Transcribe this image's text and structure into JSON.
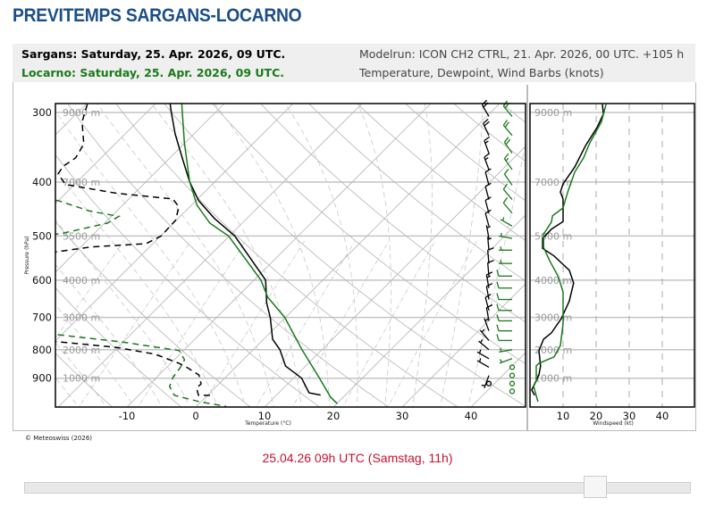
{
  "page_title": "PREVITEMPS SARGANS-LOCARNO",
  "header": {
    "station1": "Sargans: Saturday, 25. Apr. 2026, 09 UTC.",
    "station2": "Locarno: Saturday, 25. Apr. 2026, 09 UTC.",
    "modelrun": "Modelrun: ICON CH2 CTRL, 21. Apr. 2026, 00 UTC. +105 h",
    "variables": "Temperature, Dewpoint, Wind Barbs (knots)"
  },
  "colors": {
    "title": "#1d4f86",
    "sargans": "#000000",
    "locarno": "#1a7a1a",
    "time_label": "#c8102e",
    "grid": "#b0b0b0"
  },
  "copyright": "© Meteoswiss (2026)",
  "time_label": "25.04.26 09h UTC (Samstag, 11h)",
  "slider": {
    "position_fraction": 0.87
  },
  "chart_data": [
    {
      "type": "skew-t",
      "xlabel": "Temperature (°C)",
      "ylabel": "Pressure (hPa)",
      "x_ticks": [
        -10,
        0,
        10,
        20,
        30,
        40
      ],
      "y_ticks": [
        300,
        400,
        500,
        600,
        700,
        800,
        900
      ],
      "altitude_labels": [
        "9000 m",
        "7000 m",
        "5500 m",
        "4000 m",
        "3000 m",
        "2000 m",
        "1000 m"
      ],
      "ylim_hPa": [
        1014,
        289
      ],
      "xlim_at_surface_C": [
        -20,
        48
      ],
      "series": [
        {
          "station": "Sargans",
          "kind": "temperature",
          "color": "#000000",
          "style": "solid",
          "points": [
            [
              289,
              -47.9
            ],
            [
              300,
              -46.4
            ],
            [
              328,
              -42.7
            ],
            [
              366,
              -37.7
            ],
            [
              400,
              -33.6
            ],
            [
              432,
              -29.6
            ],
            [
              465,
              -24.7
            ],
            [
              500,
              -19.2
            ],
            [
              549,
              -13.6
            ],
            [
              600,
              -8.3
            ],
            [
              660,
              -4.8
            ],
            [
              700,
              -2.2
            ],
            [
              766,
              1.3
            ],
            [
              800,
              3.9
            ],
            [
              856,
              7.1
            ],
            [
              900,
              11.2
            ],
            [
              956,
              14.4
            ],
            [
              965,
              16.4
            ]
          ]
        },
        {
          "station": "Locarno",
          "kind": "temperature",
          "color": "#1a7a1a",
          "style": "solid",
          "points": [
            [
              289,
              -46.2
            ],
            [
              300,
              -44.8
            ],
            [
              340,
              -40.1
            ],
            [
              400,
              -33.6
            ],
            [
              440,
              -29.2
            ],
            [
              474,
              -24.7
            ],
            [
              500,
              -20.1
            ],
            [
              600,
              -9.0
            ],
            [
              644,
              -5.5
            ],
            [
              700,
              -0.1
            ],
            [
              800,
              7.1
            ],
            [
              900,
              13.8
            ],
            [
              974,
              18.2
            ],
            [
              1000,
              20.1
            ]
          ]
        },
        {
          "station": "Sargans",
          "kind": "dewpoint",
          "color": "#000000",
          "style": "dashed",
          "points": [
            [
              290,
              -59.8
            ],
            [
              312,
              -58.0
            ],
            [
              342,
              -54.5
            ],
            [
              362,
              -53.7
            ],
            [
              375,
              -54.3
            ],
            [
              387,
              -53.9
            ],
            [
              404,
              -51.3
            ],
            [
              419,
              -42.6
            ],
            [
              429,
              -33.6
            ],
            [
              443,
              -31.6
            ],
            [
              468,
              -30.1
            ],
            [
              500,
              -29.9
            ],
            [
              516,
              -31.0
            ],
            [
              523,
              -38.4
            ],
            [
              533,
              -42.6
            ],
            [
              560,
              -55
            ],
            [
              650,
              -60
            ],
            [
              740,
              -55
            ],
            [
              774,
              -29.5
            ],
            [
              792,
              -20.3
            ],
            [
              815,
              -13.6
            ],
            [
              846,
              -8.8
            ],
            [
              862,
              -6.9
            ],
            [
              888,
              -4.2
            ],
            [
              921,
              -2.6
            ],
            [
              938,
              -2.6
            ],
            [
              966,
              -1.3
            ],
            [
              966,
              0.6
            ]
          ]
        },
        {
          "station": "Locarno",
          "kind": "dewpoint",
          "color": "#1a7a1a",
          "style": "dashed",
          "points": [
            [
              400,
              -70
            ],
            [
              432,
              -50
            ],
            [
              451,
              -43.9
            ],
            [
              461,
              -38.9
            ],
            [
              474,
              -39.6
            ],
            [
              495,
              -44.8
            ],
            [
              520,
              -60
            ],
            [
              650,
              -65
            ],
            [
              730,
              -55
            ],
            [
              752,
              -30.5
            ],
            [
              775,
              -20.1
            ],
            [
              803,
              -10.6
            ],
            [
              834,
              -8.5
            ],
            [
              861,
              -8.0
            ],
            [
              898,
              -7.6
            ],
            [
              931,
              -6.8
            ],
            [
              966,
              -4.8
            ],
            [
              992,
              -0.2
            ],
            [
              1011,
              4.3
            ]
          ]
        }
      ],
      "wind_barbs": [
        {
          "station": "Sargans",
          "color": "#000000",
          "barbs": [
            [
              305,
              330,
              20
            ],
            [
              330,
              335,
              18
            ],
            [
              355,
              340,
              16
            ],
            [
              380,
              340,
              14
            ],
            [
              405,
              345,
              10
            ],
            [
              430,
              345,
              10
            ],
            [
              455,
              345,
              10
            ],
            [
              480,
              345,
              8
            ],
            [
              505,
              350,
              4
            ],
            [
              530,
              355,
              5
            ],
            [
              560,
              355,
              8
            ],
            [
              590,
              355,
              12
            ],
            [
              620,
              350,
              13
            ],
            [
              650,
              350,
              12
            ],
            [
              680,
              345,
              10
            ],
            [
              710,
              350,
              9
            ],
            [
              740,
              340,
              6
            ],
            [
              770,
              320,
              5
            ],
            [
              800,
              310,
              3
            ],
            [
              830,
              300,
              3
            ],
            [
              860,
              300,
              3
            ],
            [
              890,
              200,
              3
            ],
            [
              920,
              0,
              0
            ]
          ]
        },
        {
          "station": "Locarno",
          "color": "#1a7a1a",
          "barbs": [
            [
              305,
              320,
              22
            ],
            [
              330,
              320,
              20
            ],
            [
              355,
              325,
              18
            ],
            [
              380,
              325,
              15
            ],
            [
              405,
              325,
              12
            ],
            [
              430,
              320,
              11
            ],
            [
              455,
              320,
              9
            ],
            [
              480,
              300,
              6
            ],
            [
              505,
              280,
              4
            ],
            [
              530,
              270,
              4
            ],
            [
              560,
              270,
              6
            ],
            [
              590,
              270,
              8
            ],
            [
              620,
              270,
              10
            ],
            [
              650,
              270,
              10
            ],
            [
              680,
              270,
              10
            ],
            [
              710,
              270,
              10
            ],
            [
              740,
              270,
              10
            ],
            [
              770,
              270,
              9
            ],
            [
              800,
              260,
              7
            ],
            [
              830,
              250,
              3
            ],
            [
              860,
              230,
              2
            ],
            [
              890,
              200,
              2
            ],
            [
              920,
              0,
              0
            ],
            [
              950,
              180,
              2
            ]
          ]
        }
      ]
    },
    {
      "type": "line",
      "xlabel": "Windspeed (kt)",
      "x_ticks": [
        10,
        20,
        30,
        40
      ],
      "xlim": [
        0,
        49
      ],
      "altitude_labels": [
        "9000 m",
        "7000 m",
        "5000 m",
        "4000 m",
        "3000 m",
        "2000 m",
        "1000 m"
      ],
      "series": [
        {
          "station": "Sargans",
          "color": "#000000",
          "points_hPa_kt": [
            [
              290,
              21.9
            ],
            [
              302,
              22.2
            ],
            [
              319,
              20.3
            ],
            [
              344,
              16.8
            ],
            [
              376,
              13.5
            ],
            [
              403,
              10
            ],
            [
              417,
              9.2
            ],
            [
              429,
              10
            ],
            [
              471,
              10
            ],
            [
              486,
              6.5
            ],
            [
              505,
              3.8
            ],
            [
              526,
              3.8
            ],
            [
              543,
              7.3
            ],
            [
              576,
              11.9
            ],
            [
              607,
              13.2
            ],
            [
              654,
              11.9
            ],
            [
              703,
              9.5
            ],
            [
              746,
              6.5
            ],
            [
              766,
              4.1
            ],
            [
              803,
              2.7
            ],
            [
              856,
              3.2
            ],
            [
              888,
              2.7
            ],
            [
              921,
              1.4
            ],
            [
              945,
              0.5
            ],
            [
              966,
              1.4
            ]
          ]
        },
        {
          "station": "Locarno",
          "color": "#1a7a1a",
          "points_hPa_kt": [
            [
              290,
              23.0
            ],
            [
              312,
              21.6
            ],
            [
              340,
              18.1
            ],
            [
              362,
              16.2
            ],
            [
              384,
              13.5
            ],
            [
              417,
              11.4
            ],
            [
              445,
              10
            ],
            [
              460,
              6.8
            ],
            [
              472,
              6.5
            ],
            [
              496,
              4.1
            ],
            [
              524,
              4.1
            ],
            [
              553,
              5.9
            ],
            [
              592,
              8.6
            ],
            [
              630,
              10
            ],
            [
              719,
              10
            ],
            [
              786,
              9.2
            ],
            [
              824,
              7.3
            ],
            [
              846,
              2.7
            ],
            [
              855,
              1.9
            ],
            [
              911,
              1.9
            ],
            [
              931,
              1.1
            ],
            [
              992,
              2.4
            ]
          ]
        }
      ]
    }
  ]
}
